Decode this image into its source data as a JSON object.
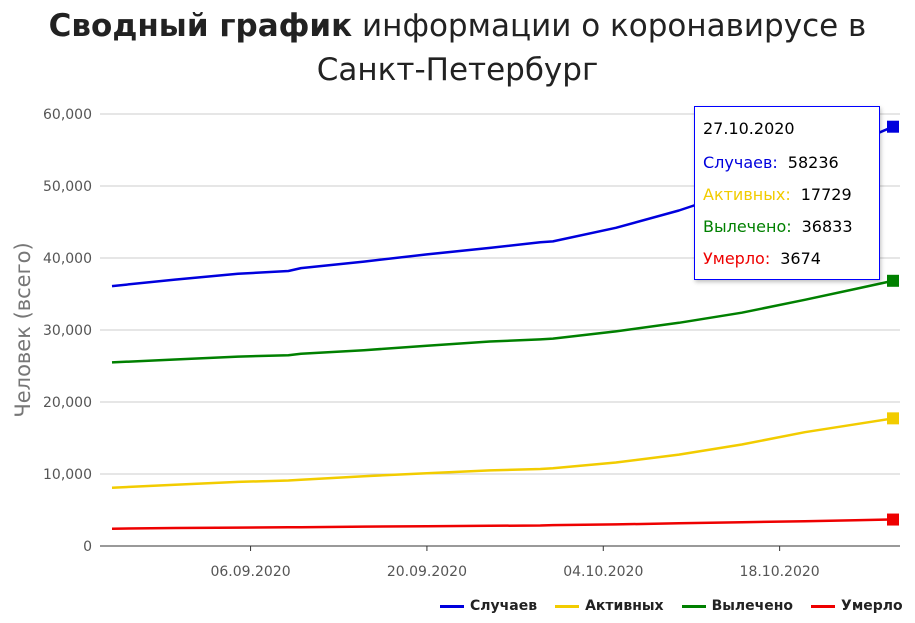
{
  "title": {
    "bold": "Сводный график",
    "rest": " информации о коронавирусе в",
    "line2": "Санкт-Петербург"
  },
  "chart_data": {
    "type": "line",
    "ylabel": "Человек (всего)",
    "ylim": [
      0,
      60000
    ],
    "yticks": [
      0,
      10000,
      20000,
      30000,
      40000,
      50000,
      60000
    ],
    "ytick_labels": [
      "0",
      "10,000",
      "20,000",
      "30,000",
      "40,000",
      "50,000",
      "60,000"
    ],
    "xticks": [
      "06.09.2020",
      "20.09.2020",
      "04.10.2020",
      "18.10.2020"
    ],
    "xlim": [
      "2020-08-26",
      "2020-10-27"
    ],
    "grid": true,
    "legend_position": "bottom-right",
    "x": [
      "2020-08-26",
      "2020-08-31",
      "2020-09-05",
      "2020-09-09",
      "2020-09-10",
      "2020-09-15",
      "2020-09-20",
      "2020-09-25",
      "2020-09-29",
      "2020-09-30",
      "2020-10-05",
      "2020-10-10",
      "2020-10-15",
      "2020-10-20",
      "2020-10-24",
      "2020-10-27"
    ],
    "series": [
      {
        "name": "Случаев",
        "color": "#0000dd",
        "values": [
          36100,
          37000,
          37800,
          38200,
          38600,
          39500,
          40500,
          41400,
          42200,
          42300,
          44200,
          46600,
          49500,
          53000,
          56000,
          58236
        ]
      },
      {
        "name": "Активных",
        "color": "#f2cc00",
        "values": [
          8100,
          8500,
          8900,
          9100,
          9200,
          9700,
          10100,
          10500,
          10700,
          10800,
          11600,
          12700,
          14100,
          15800,
          16900,
          17729
        ]
      },
      {
        "name": "Вылечено",
        "color": "#008000",
        "values": [
          25500,
          25900,
          26300,
          26500,
          26700,
          27200,
          27800,
          28400,
          28700,
          28800,
          29800,
          31000,
          32400,
          34200,
          35700,
          36833
        ]
      },
      {
        "name": "Умерло",
        "color": "#ee0000",
        "values": [
          2400,
          2500,
          2550,
          2600,
          2600,
          2700,
          2750,
          2800,
          2850,
          2900,
          3000,
          3150,
          3300,
          3450,
          3580,
          3674
        ]
      }
    ]
  },
  "tooltip": {
    "date": "27.10.2020",
    "rows": [
      {
        "label": "Случаев:",
        "value": "58236",
        "color": "#0000dd"
      },
      {
        "label": "Активных:",
        "value": "17729",
        "color": "#f2cc00"
      },
      {
        "label": "Вылечено:",
        "value": "36833",
        "color": "#008000"
      },
      {
        "label": "Умерло:",
        "value": "3674",
        "color": "#ee0000"
      }
    ]
  }
}
